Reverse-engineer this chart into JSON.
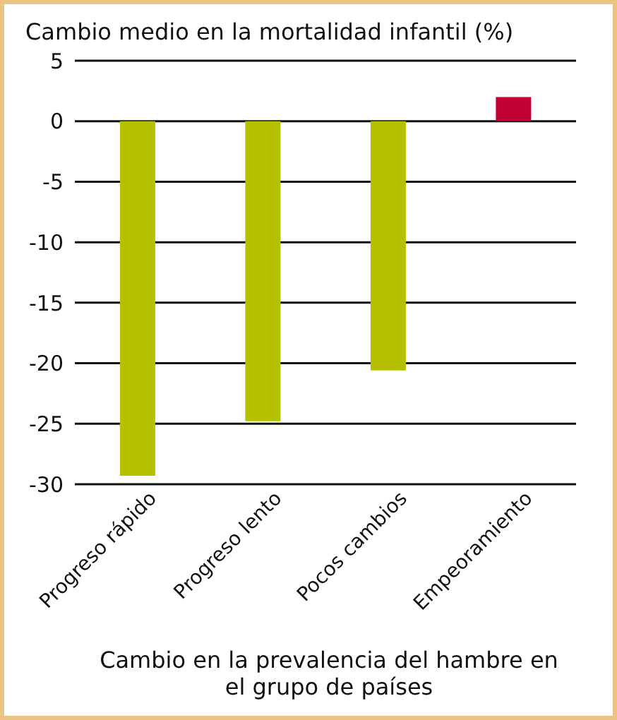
{
  "chart_data": {
    "type": "bar",
    "title": "Cambio medio en la mortalidad infantil (%)",
    "xlabel": "Cambio en la prevalencia del hambre en el grupo de países",
    "categories": [
      "Progreso rápido",
      "Progreso lento",
      "Pocos cambios",
      "Empeoramiento"
    ],
    "values": [
      -29.3,
      -24.8,
      -20.6,
      2.0
    ],
    "colors": [
      "#b5c100",
      "#b5c100",
      "#b5c100",
      "#c20034"
    ],
    "ylim": [
      -30,
      5
    ],
    "yticks": [
      -30,
      -25,
      -20,
      -15,
      -10,
      -5,
      0,
      5
    ],
    "grid": "y"
  }
}
